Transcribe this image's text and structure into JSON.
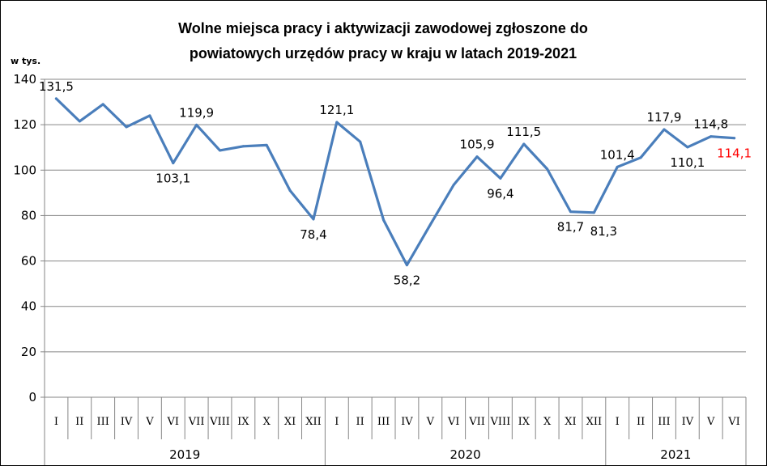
{
  "chart_data": {
    "type": "line",
    "title_lines": [
      "Wolne miejsca pracy i aktywizacji zawodowej zgłoszone do",
      "powiatowych urzędów pracy w kraju w latach 2019-2021"
    ],
    "ylabel": "w tys.",
    "ylim": [
      0,
      140
    ],
    "yticks": [
      0,
      20,
      40,
      60,
      80,
      100,
      120,
      140
    ],
    "grid": true,
    "line_color": "#4a7ebb",
    "highlight_color": "#ff0000",
    "categories": [
      "I",
      "II",
      "III",
      "IV",
      "V",
      "VI",
      "VII",
      "VIII",
      "IX",
      "X",
      "XI",
      "XII",
      "I",
      "II",
      "III",
      "IV",
      "V",
      "VI",
      "VII",
      "VIII",
      "IX",
      "X",
      "XI",
      "XII",
      "I",
      "II",
      "III",
      "IV",
      "V",
      "VI"
    ],
    "year_groups": [
      {
        "label": "2019",
        "count": 12
      },
      {
        "label": "2020",
        "count": 12
      },
      {
        "label": "2021",
        "count": 6
      }
    ],
    "series": [
      {
        "values": [
          131.5,
          121.5,
          129.0,
          119.0,
          124.0,
          103.1,
          119.9,
          108.7,
          110.5,
          111.0,
          91.0,
          78.4,
          121.1,
          112.5,
          78.0,
          58.2,
          76.0,
          93.5,
          105.9,
          96.4,
          111.5,
          100.5,
          81.7,
          81.3,
          101.4,
          105.5,
          117.9,
          110.1,
          114.8,
          114.1
        ]
      }
    ],
    "data_labels": [
      {
        "index": 0,
        "text": "131,5",
        "pos": "above"
      },
      {
        "index": 5,
        "text": "103,1",
        "pos": "below"
      },
      {
        "index": 6,
        "text": "119,9",
        "pos": "above"
      },
      {
        "index": 11,
        "text": "78,4",
        "pos": "below"
      },
      {
        "index": 12,
        "text": "121,1",
        "pos": "above"
      },
      {
        "index": 15,
        "text": "58,2",
        "pos": "below"
      },
      {
        "index": 18,
        "text": "105,9",
        "pos": "above"
      },
      {
        "index": 19,
        "text": "96,4",
        "pos": "below"
      },
      {
        "index": 20,
        "text": "111,5",
        "pos": "above"
      },
      {
        "index": 22,
        "text": "81,7",
        "pos": "below"
      },
      {
        "index": 23,
        "text": "81,3",
        "pos": "below-right"
      },
      {
        "index": 24,
        "text": "101,4",
        "pos": "above"
      },
      {
        "index": 26,
        "text": "117,9",
        "pos": "above"
      },
      {
        "index": 27,
        "text": "110,1",
        "pos": "below"
      },
      {
        "index": 28,
        "text": "114,8",
        "pos": "above"
      },
      {
        "index": 29,
        "text": "114,1",
        "pos": "below",
        "highlight": true
      }
    ]
  }
}
